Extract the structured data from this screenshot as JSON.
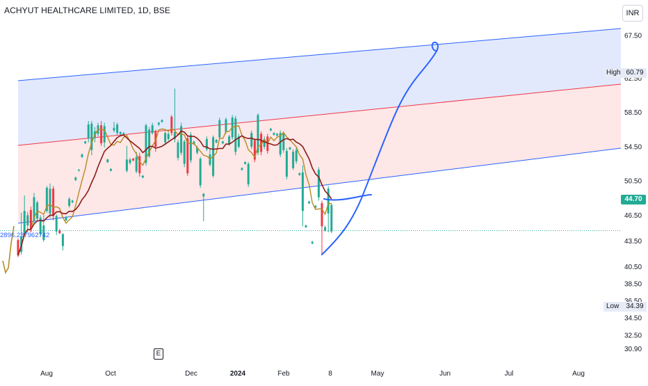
{
  "header": {
    "title": "ACHYUT HEALTHCARE LIMITED, 1D, BSE",
    "currency": "INR"
  },
  "markers": {
    "event_label": "E",
    "high_label": "High",
    "high_value": "60.79",
    "low_label": "Low",
    "low_value": "34.39",
    "last_price": "44.70",
    "ruler_text": "2896.237962742"
  },
  "colors": {
    "bull": "#22ab94",
    "bear": "#f23645",
    "channel_line": "#2962ff",
    "channel_mid": "#f23645",
    "upper_fill": "#dbe4fd",
    "lower_fill": "#fde3e3",
    "ma_fast": "#b38b23",
    "ma_slow": "#8b1a1a",
    "pen": "#2962ff"
  },
  "chart_data": {
    "type": "candlestick",
    "title": "ACHYUT HEALTHCARE LIMITED, 1D, BSE",
    "ylim": [
      29.8,
      69.2
    ],
    "y_ticks": [
      "67.50",
      "62.50",
      "58.50",
      "54.50",
      "50.50",
      "46.50",
      "43.50",
      "40.50",
      "38.50",
      "36.50",
      "34.50",
      "32.50",
      "30.90"
    ],
    "x_ticks": [
      "Aug",
      "Oct",
      "Dec",
      "2024",
      "Feb",
      "8",
      "May",
      "Jun",
      "Jul",
      "Aug"
    ],
    "bold_x_ticks": [
      "2024"
    ],
    "grid": false,
    "bars": [
      {
        "c": "bear",
        "o": 43.6,
        "cl": 41.8,
        "h": 43.8,
        "l": 41.6
      },
      {
        "c": "bull",
        "o": 42.2,
        "cl": 44.0,
        "h": 46.8,
        "l": 41.9
      },
      {
        "c": "bull",
        "o": 44.2,
        "cl": 47.0,
        "h": 48.8,
        "l": 44.0
      },
      {
        "c": "bull",
        "o": 45.3,
        "cl": 46.5,
        "h": 46.9,
        "l": 44.5
      },
      {
        "c": "bear",
        "o": 47.1,
        "cl": 44.9,
        "h": 47.5,
        "l": 44.5
      },
      {
        "c": "bull",
        "o": 45.9,
        "cl": 48.6,
        "h": 49.1,
        "l": 45.4
      },
      {
        "c": "bull",
        "o": 46.1,
        "cl": 48.0,
        "h": 48.2,
        "l": 45.9
      },
      {
        "c": "bull",
        "o": 44.3,
        "cl": 46.2,
        "h": 46.5,
        "l": 44.0
      },
      {
        "c": "bull",
        "o": 43.6,
        "cl": 45.3,
        "h": 46.5,
        "l": 43.4
      },
      {
        "c": "bull",
        "o": 47.0,
        "cl": 49.7,
        "h": 49.9,
        "l": 46.8
      },
      {
        "c": "bull",
        "o": 46.7,
        "cl": 49.6,
        "h": 50.2,
        "l": 46.2
      },
      {
        "c": "bear",
        "o": 49.6,
        "cl": 46.4,
        "h": 49.9,
        "l": 45.9
      },
      {
        "c": "bull",
        "o": 44.6,
        "cl": 46.4,
        "h": 46.6,
        "l": 44.2
      },
      {
        "c": "bear",
        "o": 44.7,
        "cl": 44.4,
        "h": 44.9,
        "l": 44.3
      },
      {
        "c": "bull",
        "o": 42.9,
        "cl": 44.3,
        "h": 44.4,
        "l": 42.4
      },
      {
        "c": "bull",
        "o": 45.9,
        "cl": 46.3,
        "h": 46.4,
        "l": 45.8
      },
      {
        "c": "bull",
        "o": 47.6,
        "cl": 48.4,
        "h": 48.6,
        "l": 47.4
      },
      {
        "c": "bull",
        "o": 48.0,
        "cl": 48.2,
        "h": 48.3,
        "l": 47.9
      },
      {
        "c": "bull",
        "o": 50.6,
        "cl": 50.9,
        "h": 51.0,
        "l": 50.5
      },
      {
        "c": "bull",
        "o": 51.7,
        "cl": 51.8,
        "h": 51.9,
        "l": 51.6
      },
      {
        "c": "bull",
        "o": 53.3,
        "cl": 53.6,
        "h": 53.7,
        "l": 53.2
      },
      {
        "c": "bull",
        "o": 54.9,
        "cl": 55.1,
        "h": 55.2,
        "l": 54.8
      },
      {
        "c": "bull",
        "o": 55.5,
        "cl": 57.1,
        "h": 57.5,
        "l": 55.0
      },
      {
        "c": "bull",
        "o": 54.1,
        "cl": 57.2,
        "h": 57.5,
        "l": 53.5
      },
      {
        "c": "bull",
        "o": 55.5,
        "cl": 56.3,
        "h": 56.8,
        "l": 55.0
      },
      {
        "c": "bull",
        "o": 56.0,
        "cl": 57.0,
        "h": 57.3,
        "l": 55.7
      },
      {
        "c": "bear",
        "o": 57.0,
        "cl": 54.9,
        "h": 57.5,
        "l": 54.6
      },
      {
        "c": "bull",
        "o": 55.0,
        "cl": 56.9,
        "h": 57.3,
        "l": 54.4
      },
      {
        "c": "bull",
        "o": 52.7,
        "cl": 53.0,
        "h": 53.1,
        "l": 52.6
      },
      {
        "c": "bull",
        "o": 51.7,
        "cl": 51.9,
        "h": 52.0,
        "l": 51.6
      },
      {
        "c": "bull",
        "o": 56.4,
        "cl": 56.7,
        "h": 57.4,
        "l": 56.2
      },
      {
        "c": "bull",
        "o": 56.1,
        "cl": 57.1,
        "h": 57.3,
        "l": 55.8
      },
      {
        "c": "bull",
        "o": 56.0,
        "cl": 56.2,
        "h": 56.3,
        "l": 55.9
      },
      {
        "c": "bull",
        "o": 55.9,
        "cl": 56.1,
        "h": 56.2,
        "l": 55.8
      },
      {
        "c": "bull",
        "o": 51.7,
        "cl": 53.0,
        "h": 54.6,
        "l": 51.5
      },
      {
        "c": "bull",
        "o": 52.6,
        "cl": 53.0,
        "h": 53.2,
        "l": 52.4
      },
      {
        "c": "bear",
        "o": 53.1,
        "cl": 52.9,
        "h": 53.2,
        "l": 52.8
      },
      {
        "c": "bull",
        "o": 51.6,
        "cl": 53.3,
        "h": 53.9,
        "l": 51.4
      },
      {
        "c": "bear",
        "o": 53.4,
        "cl": 51.4,
        "h": 53.8,
        "l": 51.0
      },
      {
        "c": "bull",
        "o": 50.9,
        "cl": 51.1,
        "h": 51.2,
        "l": 50.8
      },
      {
        "c": "bull",
        "o": 52.6,
        "cl": 57.0,
        "h": 57.2,
        "l": 52.3
      },
      {
        "c": "bull",
        "o": 53.4,
        "cl": 56.5,
        "h": 56.8,
        "l": 53.2
      },
      {
        "c": "bull",
        "o": 56.1,
        "cl": 57.0,
        "h": 57.3,
        "l": 55.9
      },
      {
        "c": "bear",
        "o": 56.3,
        "cl": 54.5,
        "h": 56.5,
        "l": 53.9
      },
      {
        "c": "bull",
        "o": 57.1,
        "cl": 57.3,
        "h": 57.4,
        "l": 56.9
      },
      {
        "c": "bull",
        "o": 57.4,
        "cl": 57.6,
        "h": 57.7,
        "l": 57.3
      },
      {
        "c": "bull",
        "o": 55.0,
        "cl": 56.1,
        "h": 56.3,
        "l": 54.7
      },
      {
        "c": "bull",
        "o": 55.4,
        "cl": 56.0,
        "h": 56.2,
        "l": 55.2
      },
      {
        "c": "bear",
        "o": 58.0,
        "cl": 56.1,
        "h": 58.2,
        "l": 55.8
      },
      {
        "c": "bull",
        "o": 55.4,
        "cl": 56.2,
        "h": 61.3,
        "l": 55.0
      },
      {
        "c": "bull",
        "o": 53.2,
        "cl": 55.0,
        "h": 55.3,
        "l": 52.9
      },
      {
        "c": "bull",
        "o": 53.8,
        "cl": 56.9,
        "h": 57.3,
        "l": 53.5
      },
      {
        "c": "bull",
        "o": 52.5,
        "cl": 55.1,
        "h": 55.3,
        "l": 52.1
      },
      {
        "c": "bear",
        "o": 55.5,
        "cl": 51.4,
        "h": 55.8,
        "l": 51.1
      },
      {
        "c": "bull",
        "o": 52.9,
        "cl": 55.9,
        "h": 56.2,
        "l": 52.6
      },
      {
        "c": "bull",
        "o": 54.8,
        "cl": 55.1,
        "h": 55.2,
        "l": 54.7
      },
      {
        "c": "bull",
        "o": 53.8,
        "cl": 54.4,
        "h": 54.6,
        "l": 53.6
      },
      {
        "c": "bull",
        "o": 50.0,
        "cl": 53.1,
        "h": 53.3,
        "l": 49.7
      },
      {
        "c": "bull",
        "o": 48.7,
        "cl": 49.0,
        "h": 49.1,
        "l": 45.8
      },
      {
        "c": "bull",
        "o": 54.2,
        "cl": 55.4,
        "h": 55.7,
        "l": 54.0
      },
      {
        "c": "bull",
        "o": 52.4,
        "cl": 53.6,
        "h": 54.3,
        "l": 52.2
      },
      {
        "c": "bull",
        "o": 51.1,
        "cl": 55.6,
        "h": 55.8,
        "l": 50.9
      },
      {
        "c": "bull",
        "o": 55.0,
        "cl": 55.3,
        "h": 55.4,
        "l": 54.9
      },
      {
        "c": "bull",
        "o": 55.6,
        "cl": 57.6,
        "h": 57.9,
        "l": 55.3
      },
      {
        "c": "bull",
        "o": 54.9,
        "cl": 55.1,
        "h": 55.2,
        "l": 54.8
      },
      {
        "c": "bull",
        "o": 56.2,
        "cl": 57.7,
        "h": 57.9,
        "l": 56.0
      },
      {
        "c": "bull",
        "o": 54.8,
        "cl": 55.7,
        "h": 55.9,
        "l": 54.6
      },
      {
        "c": "bull",
        "o": 55.6,
        "cl": 57.9,
        "h": 58.2,
        "l": 55.3
      },
      {
        "c": "bull",
        "o": 53.9,
        "cl": 57.8,
        "h": 58.1,
        "l": 53.5
      },
      {
        "c": "bull",
        "o": 54.5,
        "cl": 55.7,
        "h": 56.0,
        "l": 54.3
      },
      {
        "c": "bull",
        "o": 51.8,
        "cl": 52.0,
        "h": 52.1,
        "l": 51.7
      },
      {
        "c": "bull",
        "o": 52.5,
        "cl": 52.7,
        "h": 52.8,
        "l": 52.4
      },
      {
        "c": "bull",
        "o": 50.1,
        "cl": 52.5,
        "h": 52.7,
        "l": 49.8
      },
      {
        "c": "bull",
        "o": 54.5,
        "cl": 56.1,
        "h": 56.4,
        "l": 54.2
      },
      {
        "c": "bear",
        "o": 55.2,
        "cl": 53.0,
        "h": 55.5,
        "l": 52.7
      },
      {
        "c": "bull",
        "o": 53.8,
        "cl": 58.2,
        "h": 58.4,
        "l": 53.5
      },
      {
        "c": "bear",
        "o": 56.0,
        "cl": 53.9,
        "h": 56.3,
        "l": 53.5
      },
      {
        "c": "bull",
        "o": 54.5,
        "cl": 55.4,
        "h": 55.7,
        "l": 54.2
      },
      {
        "c": "bear",
        "o": 55.7,
        "cl": 54.0,
        "h": 56.0,
        "l": 53.7
      },
      {
        "c": "bull",
        "o": 56.4,
        "cl": 56.6,
        "h": 56.7,
        "l": 56.3
      },
      {
        "c": "bull",
        "o": 55.9,
        "cl": 56.1,
        "h": 56.2,
        "l": 55.8
      },
      {
        "c": "bull",
        "o": 55.8,
        "cl": 56.0,
        "h": 56.1,
        "l": 55.7
      },
      {
        "c": "bull",
        "o": 53.6,
        "cl": 56.1,
        "h": 56.4,
        "l": 53.3
      },
      {
        "c": "bull",
        "o": 54.1,
        "cl": 56.0,
        "h": 56.3,
        "l": 53.8
      },
      {
        "c": "bull",
        "o": 51.0,
        "cl": 54.0,
        "h": 54.3,
        "l": 50.7
      },
      {
        "c": "bull",
        "o": 54.2,
        "cl": 54.4,
        "h": 54.5,
        "l": 54.1
      },
      {
        "c": "bull",
        "o": 52.0,
        "cl": 53.9,
        "h": 54.2,
        "l": 51.8
      },
      {
        "c": "bull",
        "o": 52.8,
        "cl": 54.1,
        "h": 54.4,
        "l": 52.5
      },
      {
        "c": "bull",
        "o": 51.2,
        "cl": 51.4,
        "h": 51.5,
        "l": 51.1
      },
      {
        "c": "bull",
        "o": 47.0,
        "cl": 51.5,
        "h": 52.3,
        "l": 45.2
      },
      {
        "c": "bull",
        "o": 45.1,
        "cl": 45.3,
        "h": 45.4,
        "l": 45.0
      },
      {
        "c": "bull",
        "o": 47.9,
        "cl": 48.1,
        "h": 48.2,
        "l": 47.8
      },
      {
        "c": "bull",
        "o": 43.2,
        "cl": 43.4,
        "h": 43.5,
        "l": 43.1
      },
      {
        "c": "bull",
        "o": 47.4,
        "cl": 47.6,
        "h": 47.7,
        "l": 47.3
      },
      {
        "c": "bull",
        "o": 48.6,
        "cl": 51.8,
        "h": 52.1,
        "l": 48.2
      },
      {
        "c": "bear",
        "o": 47.9,
        "cl": 45.2,
        "h": 48.2,
        "l": 41.8
      },
      {
        "c": "bull",
        "o": 44.7,
        "cl": 45.1,
        "h": 45.3,
        "l": 44.6
      },
      {
        "c": "bull",
        "o": 46.7,
        "cl": 49.6,
        "h": 49.9,
        "l": 44.5
      },
      {
        "c": "bull",
        "o": 44.6,
        "cl": 47.7,
        "h": 47.9,
        "l": 44.4
      }
    ]
  }
}
